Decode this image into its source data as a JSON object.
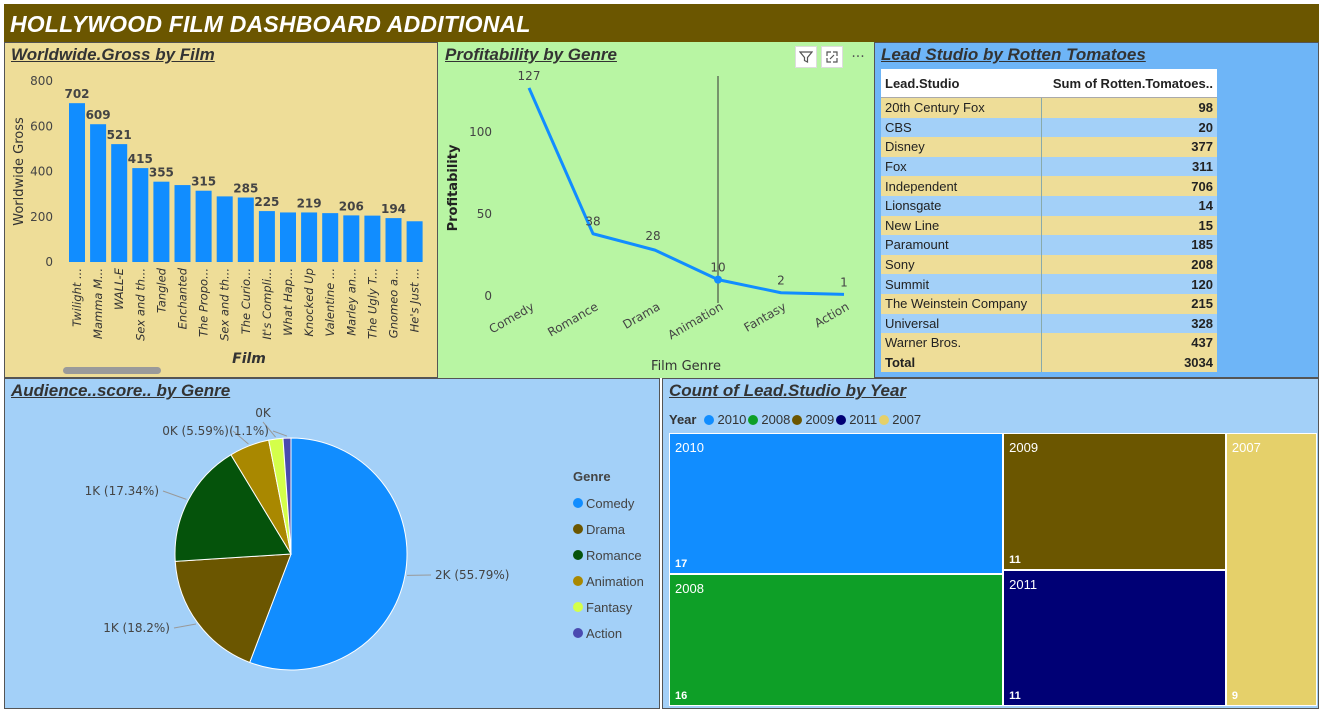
{
  "header": {
    "title": "HOLLYWOOD FILM DASHBOARD ADDITIONAL"
  },
  "icons": {
    "filter": "filter-icon",
    "focus": "focus-mode-icon",
    "more": "more-options-icon"
  },
  "chart_data": [
    {
      "id": "gross",
      "type": "bar",
      "title": "Worldwide.Gross by Film",
      "xlabel": "Film",
      "ylabel": "Worldwide Gross",
      "ylim": [
        0,
        800
      ],
      "yticks": [
        0,
        200,
        400,
        600,
        800
      ],
      "color": "#118dff",
      "categories": [
        "Twilight ...",
        "Mamma M...",
        "WALL-E",
        "Sex and th...",
        "Tangled",
        "Enchanted",
        "The Propo...",
        "Sex and th...",
        "The Curio...",
        "It's Compli...",
        "What Hap...",
        "Knocked Up",
        "Valentine ...",
        "Marley an...",
        "The Ugly T...",
        "Gnomeo a...",
        "He's Just ..."
      ],
      "values": [
        702,
        609,
        521,
        415,
        355,
        340,
        315,
        290,
        285,
        225,
        219,
        219,
        216,
        206,
        205,
        194,
        180
      ],
      "data_labels": [
        "702",
        "609",
        "521",
        "415",
        "355",
        "",
        "315",
        "",
        "285",
        "225",
        "",
        "219",
        "",
        "206",
        "",
        "194",
        ""
      ]
    },
    {
      "id": "profit",
      "type": "line",
      "title": "Profitability by Genre",
      "xlabel": "Film Genre",
      "ylabel": "Profitability",
      "ylim": [
        0,
        130
      ],
      "yticks": [
        0,
        50,
        100
      ],
      "color": "#118dff",
      "categories": [
        "Comedy",
        "Romance",
        "Drama",
        "Animation",
        "Fantasy",
        "Action"
      ],
      "values": [
        127,
        38,
        28,
        10,
        2,
        1
      ],
      "data_labels": [
        "127",
        "38",
        "28",
        "10",
        "2",
        "1"
      ]
    },
    {
      "id": "studio",
      "type": "table",
      "title": "Lead Studio by Rotten Tomatoes",
      "columns": [
        "Lead.Studio",
        "Sum of Rotten.Tomatoes.."
      ],
      "rows": [
        [
          "20th Century Fox",
          "98"
        ],
        [
          "CBS",
          "20"
        ],
        [
          "Disney",
          "377"
        ],
        [
          "Fox",
          "311"
        ],
        [
          "Independent",
          "706"
        ],
        [
          "Lionsgate",
          "14"
        ],
        [
          "New Line",
          "15"
        ],
        [
          "Paramount",
          "185"
        ],
        [
          "Sony",
          "208"
        ],
        [
          "Summit",
          "120"
        ],
        [
          "The Weinstein Company",
          "215"
        ],
        [
          "Universal",
          "328"
        ],
        [
          "Warner Bros.",
          "437"
        ]
      ],
      "total": [
        "Total",
        "3034"
      ]
    },
    {
      "id": "audience",
      "type": "pie",
      "title": "Audience..score.. by Genre",
      "legend_title": "Genre",
      "legend_position": "right",
      "slices": [
        {
          "name": "Comedy",
          "value": 55.79,
          "label": "2K (55.79%)",
          "color": "#118dff"
        },
        {
          "name": "Drama",
          "value": 18.2,
          "label": "1K (18.2%)",
          "color": "#6b5600"
        },
        {
          "name": "Romance",
          "value": 17.34,
          "label": "1K (17.34%)",
          "color": "#05530b"
        },
        {
          "name": "Animation",
          "value": 5.59,
          "label": "0K (5.59%)",
          "color": "#a98800"
        },
        {
          "name": "Fantasy",
          "value": 1.98,
          "label": "0K",
          "color": "#d4ff4a"
        },
        {
          "name": "Action",
          "value": 1.1,
          "label": "(1.1%)",
          "color": "#4a4ab0"
        }
      ]
    },
    {
      "id": "studio_year",
      "type": "treemap",
      "title": "Count of Lead.Studio by Year",
      "legend_title": "Year",
      "legend_position": "top-left",
      "items": [
        {
          "year": "2010",
          "count": "17",
          "color": "#118dff"
        },
        {
          "year": "2008",
          "count": "16",
          "color": "#0e9f27"
        },
        {
          "year": "2009",
          "count": "11",
          "color": "#6b5600"
        },
        {
          "year": "2011",
          "count": "11",
          "color": "#000075"
        },
        {
          "year": "2007",
          "count": "9",
          "color": "#e5d06a"
        }
      ],
      "legend_order": [
        "2010",
        "2008",
        "2009",
        "2011",
        "2007"
      ]
    }
  ]
}
